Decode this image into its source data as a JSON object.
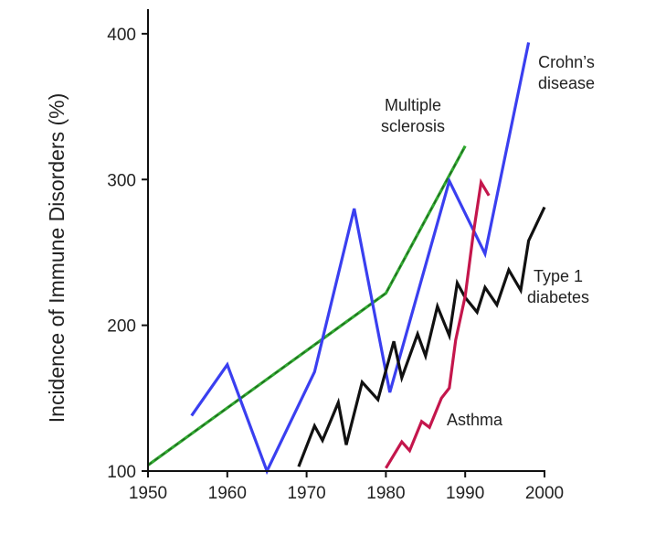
{
  "chart_data": {
    "type": "line",
    "title": "",
    "xlabel": "",
    "ylabel": "Incidence of Immune Disorders (%)",
    "xlim": [
      1950,
      2000
    ],
    "ylim": [
      100,
      420
    ],
    "x_ticks": [
      1950,
      1960,
      1970,
      1980,
      1990,
      2000
    ],
    "y_ticks": [
      100,
      200,
      300,
      400
    ],
    "grid": false,
    "legend": "inline labels",
    "series": [
      {
        "name": "Multiple sclerosis",
        "color": "#2fa82f",
        "x": [
          1950,
          1980,
          1990
        ],
        "y": [
          104,
          222,
          323
        ]
      },
      {
        "name": "Crohn's disease",
        "color": "#3a3ff0",
        "x": [
          1955.5,
          1960,
          1965,
          1971,
          1976,
          1980.5,
          1988,
          1992.5,
          1998
        ],
        "y": [
          138,
          173,
          100,
          168,
          280,
          154,
          299,
          249,
          394
        ]
      },
      {
        "name": "Type 1 diabetes",
        "color": "#111111",
        "x": [
          1969,
          1971,
          1972,
          1974,
          1975,
          1977,
          1979,
          1981,
          1982,
          1984,
          1985,
          1986.5,
          1988,
          1989,
          1990,
          1991.5,
          1992.5,
          1994,
          1995.5,
          1997,
          1998,
          2000
        ],
        "y": [
          103,
          131,
          121,
          147,
          118,
          161,
          149,
          189,
          164,
          194,
          179,
          213,
          193,
          229,
          219,
          209,
          226,
          214,
          238,
          224,
          258,
          281
        ]
      },
      {
        "name": "Asthma",
        "color": "#c4164c",
        "x": [
          1980,
          1982,
          1983,
          1984.5,
          1985.5,
          1987,
          1988,
          1988.8,
          1990,
          1991,
          1992,
          1993
        ],
        "y": [
          102,
          120,
          114,
          134,
          130,
          150,
          157,
          190,
          220,
          262,
          298,
          289
        ]
      }
    ],
    "labels": [
      {
        "series": 0,
        "lines": [
          "Multiple",
          "sclerosis"
        ]
      },
      {
        "series": 1,
        "lines": [
          "Crohn’s",
          "disease"
        ]
      },
      {
        "series": 2,
        "lines": [
          "Type 1",
          "diabetes"
        ]
      },
      {
        "series": 3,
        "lines": [
          "Asthma"
        ]
      }
    ]
  }
}
